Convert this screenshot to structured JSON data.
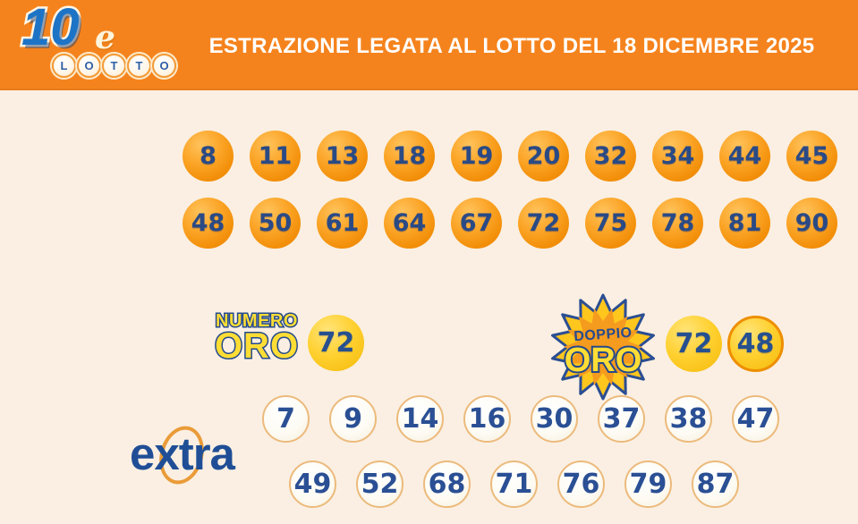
{
  "header": {
    "logo": {
      "ten": "10",
      "e": "e",
      "lotto_letters": [
        "L",
        "O",
        "T",
        "T",
        "O"
      ]
    },
    "title": "ESTRAZIONE LEGATA AL LOTTO DEL 18 DICEMBRE 2025"
  },
  "draw": {
    "row1": [
      "8",
      "11",
      "13",
      "18",
      "19",
      "20",
      "32",
      "34",
      "44",
      "45"
    ],
    "row2": [
      "48",
      "50",
      "61",
      "64",
      "67",
      "72",
      "75",
      "78",
      "81",
      "90"
    ]
  },
  "numero_oro": {
    "label_top": "NUMERO",
    "label_bottom": "ORO",
    "number": "72"
  },
  "doppio_oro": {
    "label_top": "DOPPIO",
    "label_bottom": "ORO",
    "numbers": [
      "72",
      "48"
    ]
  },
  "extra": {
    "label": "extra",
    "row1": [
      "7",
      "9",
      "14",
      "16",
      "30",
      "37",
      "38",
      "47"
    ],
    "row2": [
      "49",
      "52",
      "68",
      "71",
      "76",
      "79",
      "87"
    ]
  },
  "colors": {
    "banner_orange": "#F5831D",
    "background_cream": "#FAEFE2",
    "ball_orange": "#F79C1D",
    "ball_gold": "#FFCC2A",
    "gold_ring_orange": "#EE8E00",
    "number_navy": "#2A4A85",
    "extra_ball_border": "#ECBA7C",
    "extra_logo_blue": "#1F4E96",
    "badge_yellow": "#FFDD35",
    "badge_outline_navy": "#24498C"
  }
}
